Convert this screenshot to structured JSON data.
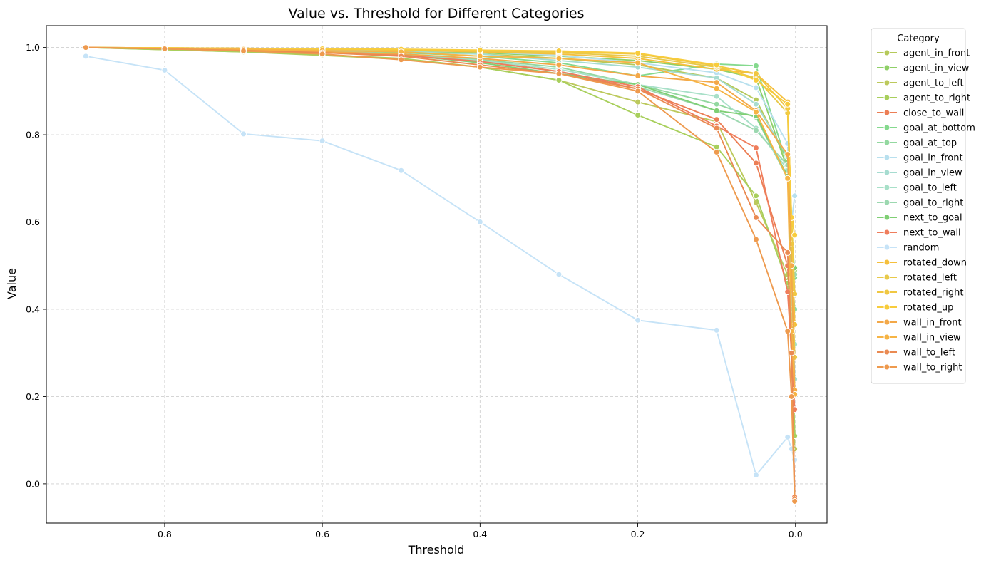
{
  "chart_data": {
    "type": "line",
    "title": "Value vs. Threshold for Different Categories",
    "xlabel": "Threshold",
    "ylabel": "Value",
    "xlim": [
      0.95,
      -0.04
    ],
    "x_inverted": true,
    "ylim": [
      -0.09,
      1.05
    ],
    "x_ticks": [
      0.8,
      0.6,
      0.4,
      0.2,
      0.0
    ],
    "x_tick_labels": [
      "0.8",
      "0.6",
      "0.4",
      "0.2",
      "0.0"
    ],
    "y_ticks": [
      0.0,
      0.2,
      0.4,
      0.6,
      0.8,
      1.0
    ],
    "y_tick_labels": [
      "0.0",
      "0.2",
      "0.4",
      "0.6",
      "0.8",
      "1.0"
    ],
    "grid": true,
    "legend_title": "Category",
    "legend_position": "outside-right",
    "x": [
      0.9,
      0.8,
      0.7,
      0.6,
      0.5,
      0.4,
      0.3,
      0.2,
      0.1,
      0.05,
      0.01,
      0.005,
      0.001
    ],
    "series": [
      {
        "name": "agent_in_front",
        "color": "#b5c95a",
        "values": [
          1.0,
          0.998,
          0.996,
          0.993,
          0.99,
          0.985,
          0.975,
          0.96,
          0.93,
          0.88,
          0.74,
          0.4,
          0.11
        ]
      },
      {
        "name": "agent_in_view",
        "color": "#8fd068",
        "values": [
          1.0,
          0.998,
          0.997,
          0.995,
          0.992,
          0.988,
          0.98,
          0.97,
          0.95,
          0.93,
          0.72,
          0.55,
          0.49
        ]
      },
      {
        "name": "agent_to_left",
        "color": "#bcc95c",
        "values": [
          1.0,
          0.995,
          0.99,
          0.982,
          0.973,
          0.955,
          0.925,
          0.875,
          0.83,
          0.645,
          0.48,
          0.3,
          0.08
        ]
      },
      {
        "name": "agent_to_right",
        "color": "#a8cf5c",
        "values": [
          1.0,
          0.995,
          0.99,
          0.983,
          0.975,
          0.955,
          0.925,
          0.845,
          0.772,
          0.66,
          0.46,
          0.3,
          0.11
        ]
      },
      {
        "name": "close_to_wall",
        "color": "#ec7e55",
        "values": [
          1.0,
          0.998,
          0.995,
          0.99,
          0.985,
          0.97,
          0.945,
          0.905,
          0.835,
          0.735,
          0.5,
          0.35,
          -0.03
        ]
      },
      {
        "name": "goal_at_bottom",
        "color": "#85d98e",
        "values": [
          1.0,
          0.998,
          0.996,
          0.993,
          0.988,
          0.98,
          0.965,
          0.935,
          0.962,
          0.958,
          0.73,
          0.6,
          0.473
        ]
      },
      {
        "name": "goal_at_top",
        "color": "#93d8a0",
        "values": [
          1.0,
          0.998,
          0.996,
          0.992,
          0.985,
          0.972,
          0.955,
          0.915,
          0.87,
          0.84,
          0.7,
          0.5,
          0.4
        ]
      },
      {
        "name": "goal_in_front",
        "color": "#b8e0ee",
        "values": [
          1.0,
          0.999,
          0.998,
          0.996,
          0.993,
          0.99,
          0.982,
          0.965,
          0.942,
          0.908,
          0.78,
          0.6,
          0.66
        ]
      },
      {
        "name": "goal_in_view",
        "color": "#a6dcd0",
        "values": [
          1.0,
          0.999,
          0.997,
          0.995,
          0.99,
          0.985,
          0.97,
          0.955,
          0.93,
          0.87,
          0.75,
          0.55,
          0.24
        ]
      },
      {
        "name": "goal_to_left",
        "color": "#a8e0c8",
        "values": [
          1.0,
          0.998,
          0.996,
          0.992,
          0.985,
          0.97,
          0.95,
          0.915,
          0.888,
          0.815,
          0.72,
          0.4,
          0.32
        ]
      },
      {
        "name": "goal_to_right",
        "color": "#9cd8b0",
        "values": [
          1.0,
          0.998,
          0.996,
          0.992,
          0.985,
          0.968,
          0.945,
          0.91,
          0.855,
          0.81,
          0.73,
          0.45,
          0.48
        ]
      },
      {
        "name": "next_to_goal",
        "color": "#7fcf74",
        "values": [
          1.0,
          0.998,
          0.995,
          0.99,
          0.983,
          0.965,
          0.94,
          0.915,
          0.855,
          0.843,
          0.705,
          0.5,
          0.495
        ]
      },
      {
        "name": "next_to_wall",
        "color": "#ef7d5c",
        "values": [
          1.0,
          0.997,
          0.993,
          0.988,
          0.982,
          0.968,
          0.945,
          0.91,
          0.82,
          0.77,
          0.44,
          0.3,
          0.17
        ]
      },
      {
        "name": "random",
        "color": "#c6e3f7",
        "values": [
          0.98,
          0.948,
          0.802,
          0.786,
          0.718,
          0.6,
          0.48,
          0.375,
          0.352,
          0.02,
          0.107,
          0.08,
          0.055
        ]
      },
      {
        "name": "rotated_down",
        "color": "#f5bf3c",
        "values": [
          1.0,
          0.999,
          0.998,
          0.996,
          0.994,
          0.99,
          0.985,
          0.975,
          0.95,
          0.94,
          0.875,
          0.6,
          0.365
        ]
      },
      {
        "name": "rotated_left",
        "color": "#e8c94a",
        "values": [
          1.0,
          0.999,
          0.998,
          0.997,
          0.995,
          0.992,
          0.988,
          0.98,
          0.955,
          0.93,
          0.85,
          0.55,
          0.29
        ]
      },
      {
        "name": "rotated_right",
        "color": "#f0c742",
        "values": [
          1.0,
          0.999,
          0.998,
          0.997,
          0.995,
          0.993,
          0.99,
          0.985,
          0.958,
          0.94,
          0.86,
          0.61,
          0.435
        ]
      },
      {
        "name": "rotated_up",
        "color": "#f8cc3c",
        "values": [
          1.0,
          0.999,
          0.998,
          0.997,
          0.996,
          0.994,
          0.992,
          0.987,
          0.96,
          0.925,
          0.87,
          0.61,
          0.57
        ]
      },
      {
        "name": "wall_in_front",
        "color": "#f3a848",
        "values": [
          1.0,
          0.997,
          0.994,
          0.99,
          0.985,
          0.975,
          0.96,
          0.935,
          0.92,
          0.855,
          0.755,
          0.5,
          0.215
        ]
      },
      {
        "name": "wall_in_view",
        "color": "#f6b445",
        "values": [
          1.0,
          0.998,
          0.996,
          0.993,
          0.99,
          0.98,
          0.975,
          0.965,
          0.906,
          0.852,
          0.7,
          0.35,
          0.205
        ]
      },
      {
        "name": "wall_to_left",
        "color": "#ea8a52",
        "values": [
          1.0,
          0.997,
          0.993,
          0.988,
          0.98,
          0.96,
          0.94,
          0.905,
          0.815,
          0.61,
          0.53,
          0.3,
          -0.035
        ]
      },
      {
        "name": "wall_to_right",
        "color": "#ee9a4e",
        "values": [
          1.0,
          0.997,
          0.992,
          0.985,
          0.972,
          0.955,
          0.94,
          0.9,
          0.76,
          0.56,
          0.35,
          0.2,
          -0.04
        ]
      }
    ]
  }
}
